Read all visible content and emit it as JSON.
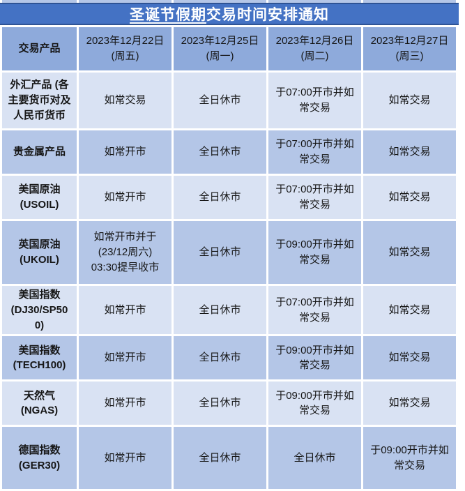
{
  "notice": {
    "title_underlined": "圣诞节假期",
    "title_rest": "交易时间安排通知"
  },
  "table": {
    "corner_header": "交易产品",
    "date_headers": [
      {
        "date": "2023年12月22日",
        "weekday": "(周五)"
      },
      {
        "date": "2023年12月25日",
        "weekday": "(周一)"
      },
      {
        "date": "2023年12月26日",
        "weekday": "(周二)"
      },
      {
        "date": "2023年12月27日",
        "weekday": "(周三)"
      }
    ],
    "rows": [
      {
        "product": "外汇产品 (各\n主要货币对及\n人民币货币",
        "cells": [
          "如常交易",
          "全日休市",
          "于07:00开市并如\n常交易",
          "如常交易"
        ]
      },
      {
        "product": "贵金属产品",
        "cells": [
          "如常开市",
          "全日休市",
          "于07:00开市并如\n常交易",
          "如常交易"
        ]
      },
      {
        "product": "美国原油\n(USOIL)",
        "cells": [
          "如常开市",
          "全日休市",
          "于07:00开市并如\n常交易",
          "如常交易"
        ]
      },
      {
        "product": "英国原油\n(UKOIL)",
        "cells": [
          "如常开市并于\n(23/12周六)\n03:30提早收市",
          "全日休市",
          "于09:00开市并如\n常交易",
          "如常交易"
        ]
      },
      {
        "product": "美国指数\n(DJ30/SP50\n0)",
        "cells": [
          "如常开市",
          "全日休市",
          "于07:00开市并如\n常交易",
          "如常交易"
        ]
      },
      {
        "product": "美国指数\n(TECH100)",
        "cells": [
          "如常开市",
          "全日休市",
          "于09:00开市并如\n常交易",
          "如常交易"
        ]
      },
      {
        "product": "天然气\n(NGAS)",
        "cells": [
          "如常开市",
          "全日休市",
          "于09:00开市并如\n常交易",
          "如常交易"
        ]
      },
      {
        "product": "德国指数\n(GER30)",
        "cells": [
          "如常开市",
          "全日休市",
          "全日休市",
          "于09:00开市并如\n常交易"
        ]
      }
    ]
  },
  "colors": {
    "title_bg": "#4472C4",
    "title_border": "#2E5395",
    "header_bg": "#8EAADB",
    "row_light": "#D9E2F3",
    "row_dark": "#B4C6E7"
  }
}
